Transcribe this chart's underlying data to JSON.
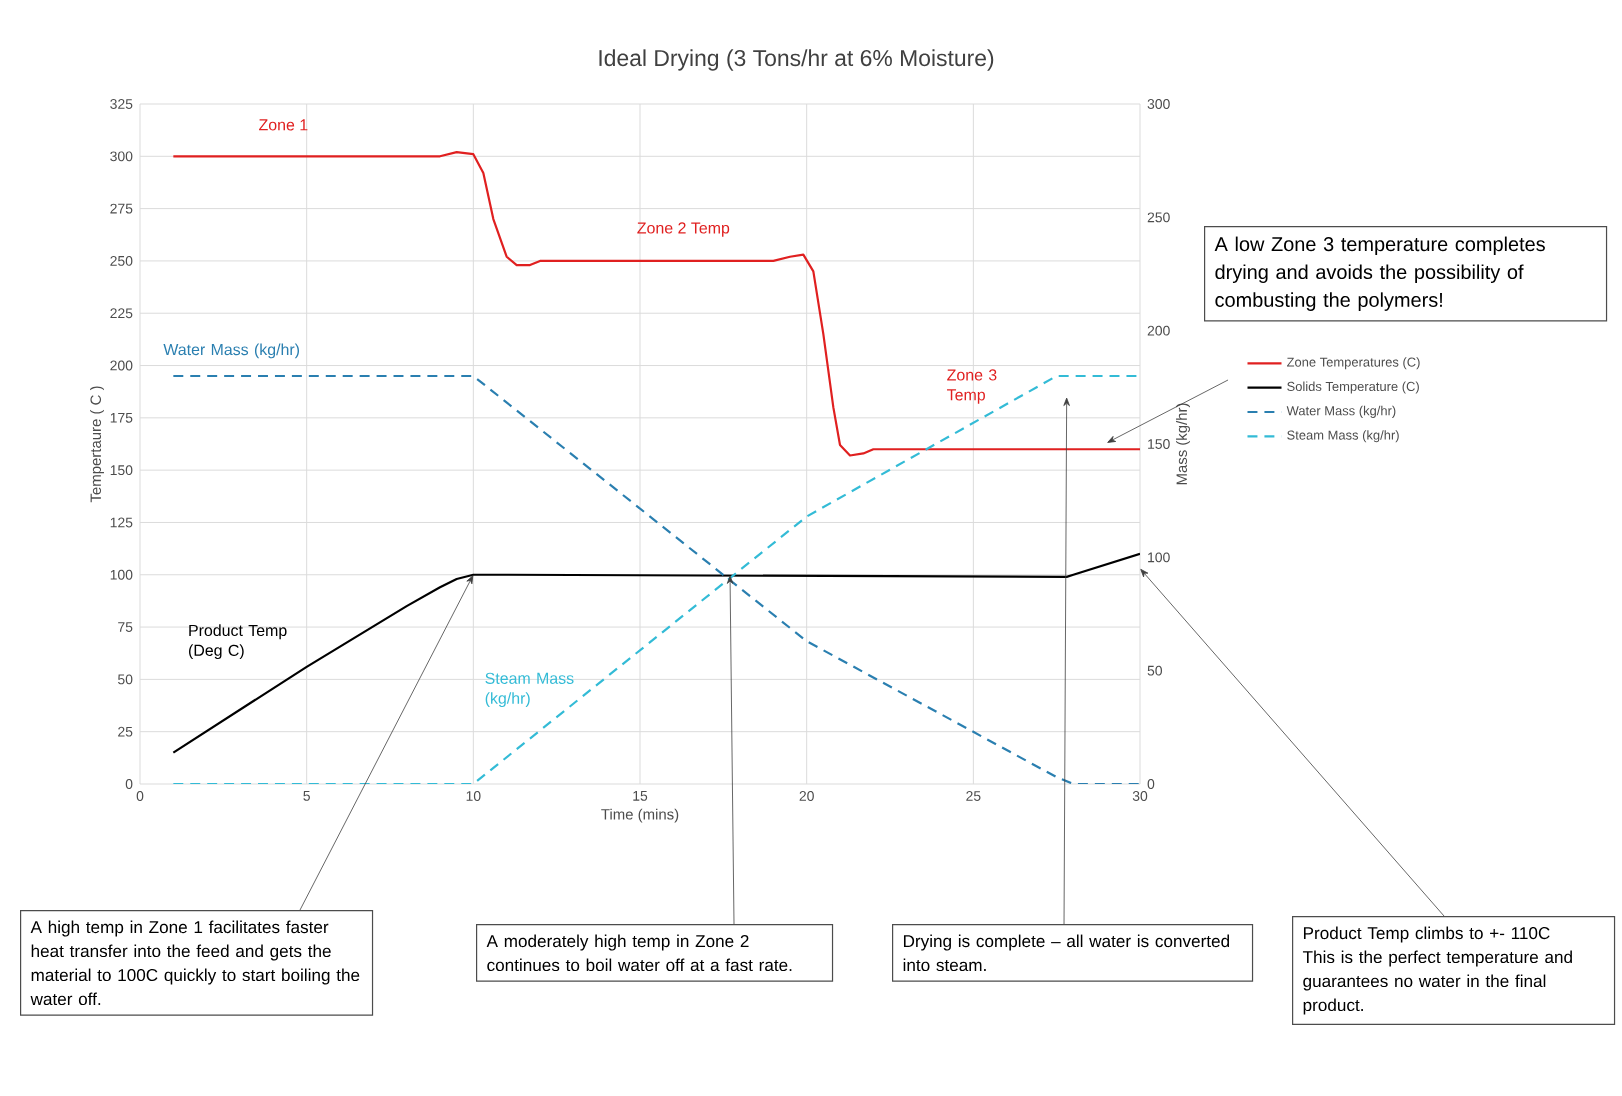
{
  "chart_data": {
    "type": "line",
    "title": "Ideal Drying (3 Tons/hr at 6% Moisture)",
    "xlabel": "Time (mins)",
    "ylabel": "Tempertaure ( C )",
    "y2label": "Mass (kg/hr)",
    "xlim": [
      0,
      30
    ],
    "xticks": [
      0,
      5,
      10,
      15,
      20,
      25,
      30
    ],
    "ylim": [
      0,
      325
    ],
    "yticks": [
      0,
      25,
      50,
      75,
      100,
      125,
      150,
      175,
      200,
      225,
      250,
      275,
      300,
      325
    ],
    "y2lim": [
      0,
      300
    ],
    "y2ticks": [
      0,
      50,
      100,
      150,
      200,
      250,
      300
    ],
    "grid": true,
    "legend": "right",
    "series": [
      {
        "name": "Zone Temperatures (C)",
        "color": "#e02020",
        "line_style": "solid",
        "x": [
          1,
          9,
          9.5,
          10,
          10.3,
          10.6,
          11,
          11.3,
          11.7,
          12,
          19,
          19.5,
          19.9,
          20.2,
          20.5,
          20.8,
          21,
          21.3,
          21.7,
          22,
          30
        ],
        "values": [
          300,
          300,
          302,
          301,
          292,
          270,
          252,
          248,
          248,
          250,
          250,
          252,
          253,
          245,
          215,
          180,
          162,
          157,
          158,
          160,
          160
        ]
      },
      {
        "name": "Solids Temperature (C)",
        "color": "#000000",
        "line_style": "solid",
        "x": [
          1,
          5,
          8,
          9,
          9.5,
          10,
          11,
          27.8,
          28,
          30
        ],
        "values": [
          15,
          56,
          85,
          94,
          98,
          100,
          100,
          99,
          100,
          110
        ]
      },
      {
        "name": "Water Mass (kg/hr)",
        "color": "#2a7fb0",
        "line_style": "dashed",
        "axis": "y2",
        "x": [
          1,
          10,
          20,
          27.5,
          28,
          30
        ],
        "values": [
          180,
          180,
          63,
          3,
          0,
          0
        ]
      },
      {
        "name": "Steam Mass (kg/hr)",
        "color": "#33bbd6",
        "line_style": "dashed",
        "axis": "y2",
        "x": [
          1,
          10,
          20,
          27.5,
          28,
          30
        ],
        "values": [
          0,
          0,
          118,
          180,
          180,
          180
        ]
      }
    ],
    "annotations": [
      "Zone 1",
      "Zone 2 Temp",
      "Zone 3 Temp",
      "Water Mass (kg/hr)",
      "Product Temp (Deg C)",
      "Steam Mass (kg/hr)",
      "A low Zone 3 temperature completes drying and avoids the possibility of combusting the polymers!",
      {
        "text": "A high temp in Zone 1 facilitates faster heat transfer into the feed and gets the material to 100C quickly to start boiling the water off.",
        "x": 10,
        "y": 100
      },
      {
        "text": "A moderately high temp in Zone 2 continues to boil water off at a fast rate.",
        "x": 17.7,
        "y": 100
      },
      "Drying is complete – all water is converted into steam.",
      "Product Temp climbs to +- 110C This is the perfect temperature and guarantees no water in the final product."
    ]
  }
}
